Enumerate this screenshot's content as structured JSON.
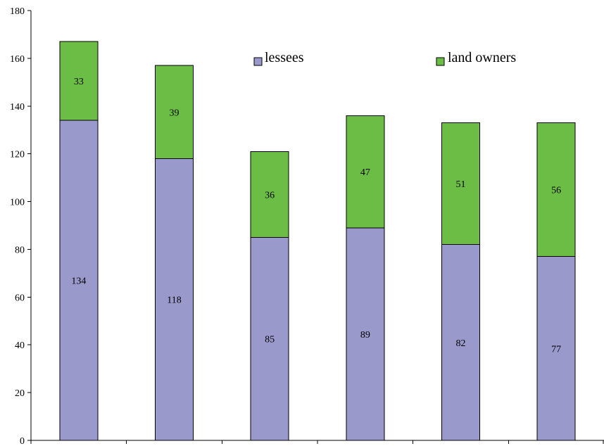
{
  "chart_data": {
    "type": "bar",
    "stacked": true,
    "categories": [
      "",
      "",
      "",
      "",
      "",
      ""
    ],
    "series": [
      {
        "name": "lessees",
        "color": "#9999cc",
        "values": [
          134,
          118,
          85,
          89,
          82,
          77
        ]
      },
      {
        "name": "land owners",
        "color": "#6cbd45",
        "values": [
          33,
          39,
          36,
          47,
          51,
          56
        ]
      }
    ],
    "ylim": [
      0,
      180
    ],
    "yticks": [
      0,
      20,
      40,
      60,
      80,
      100,
      120,
      140,
      160,
      180
    ],
    "grid": false,
    "legend_position": "top-right",
    "title": "",
    "xlabel": "",
    "ylabel": ""
  }
}
